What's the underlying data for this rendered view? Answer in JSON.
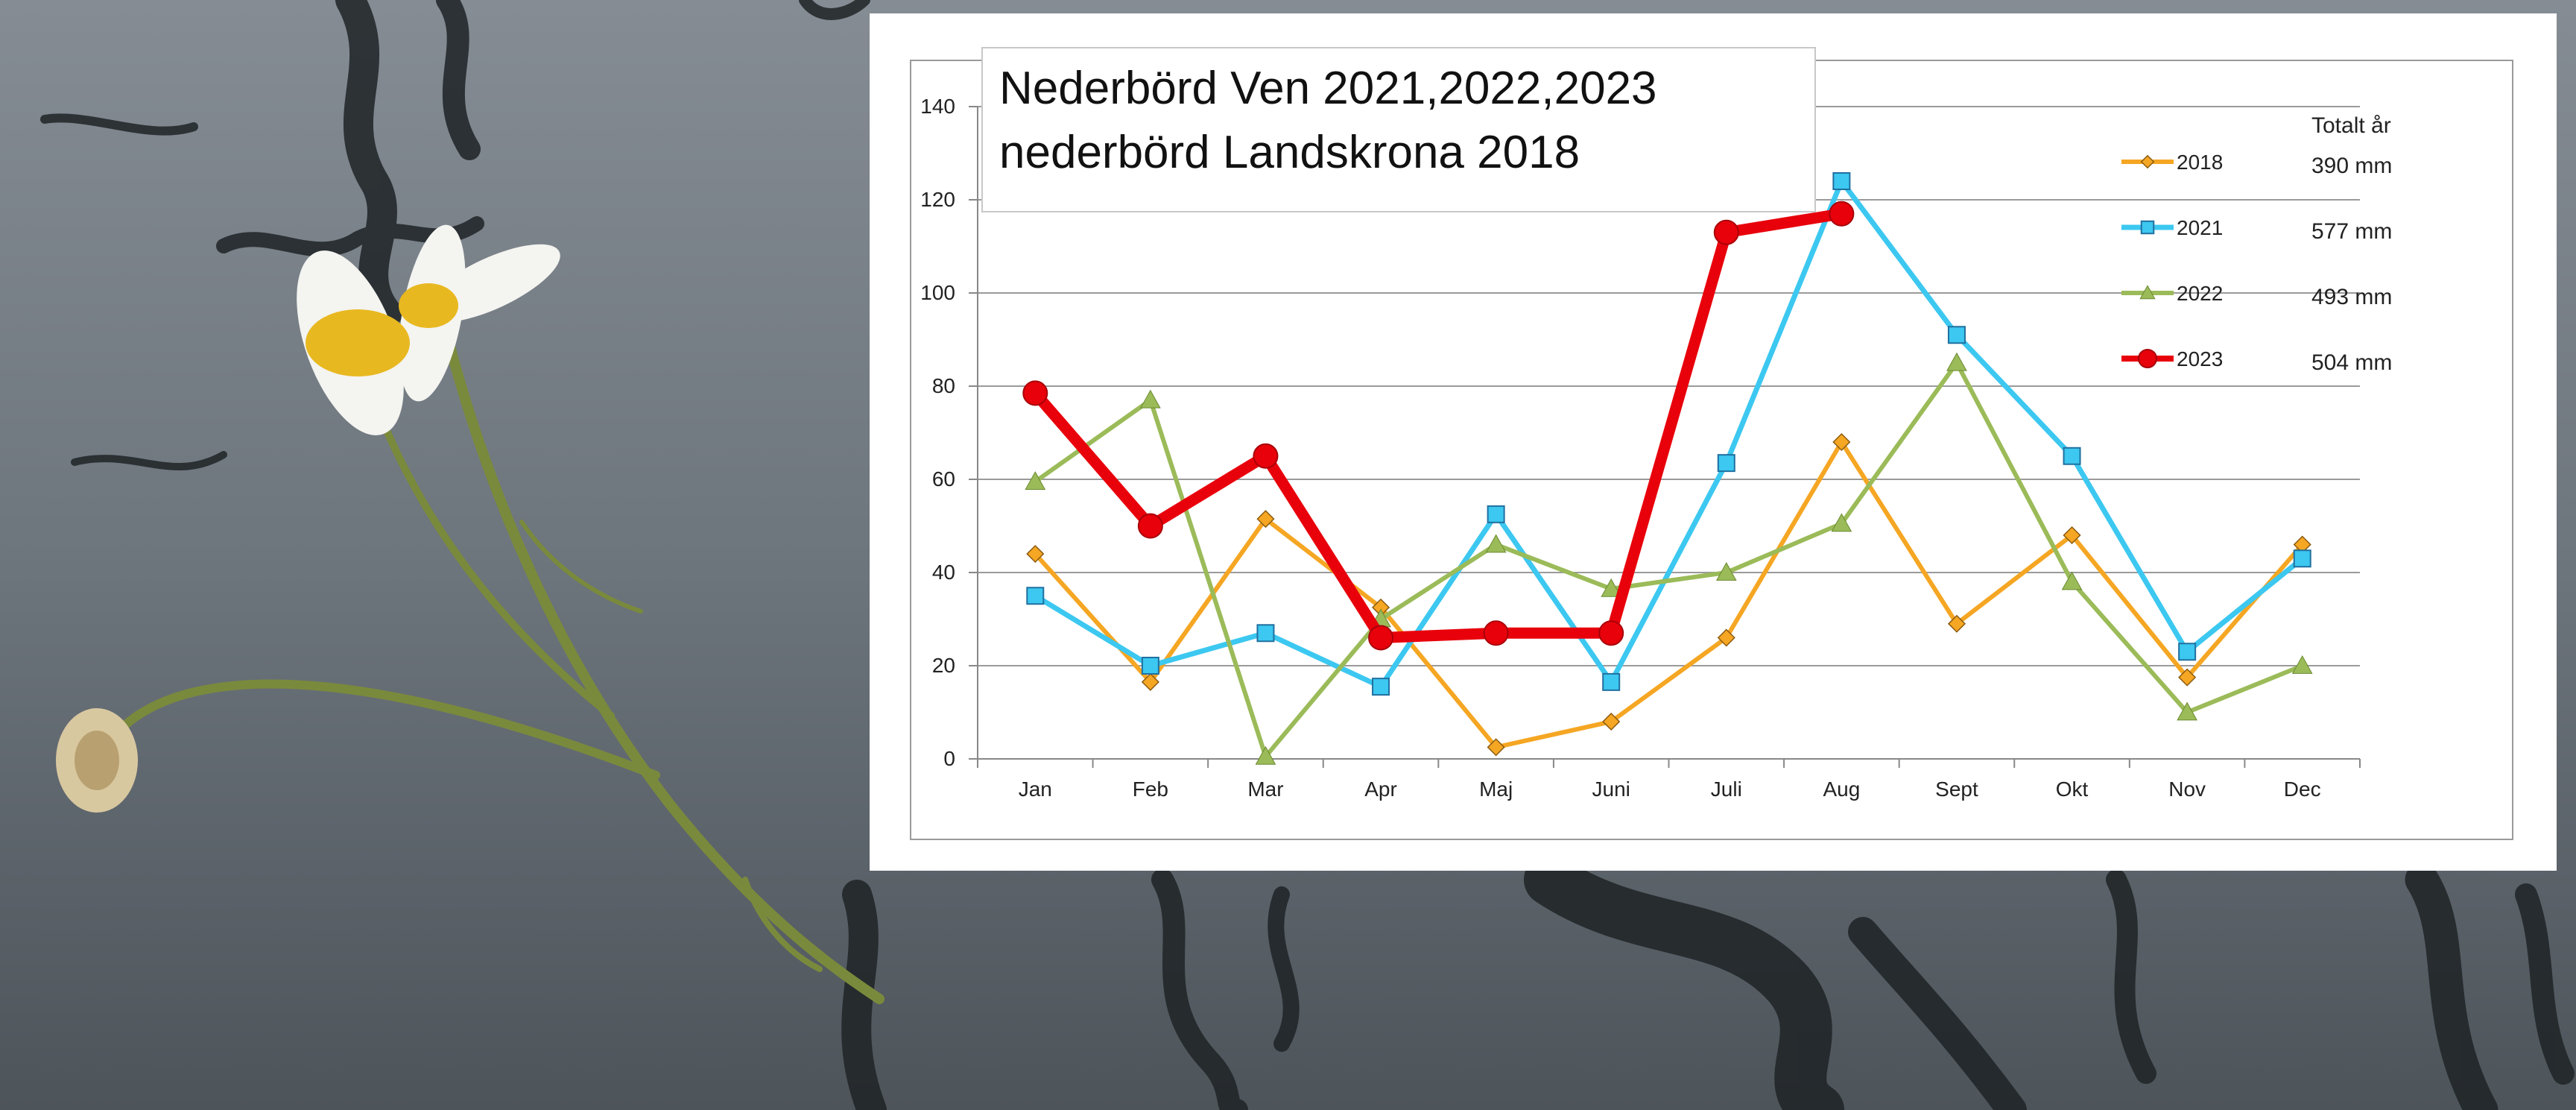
{
  "chart_data": {
    "type": "line",
    "title": "Nederbörd Ven 2021,2022,2023",
    "subtitle": "nederbörd Landskrona 2018",
    "categories": [
      "Jan",
      "Feb",
      "Mar",
      "Apr",
      "Maj",
      "Juni",
      "Juli",
      "Aug",
      "Sept",
      "Okt",
      "Nov",
      "Dec"
    ],
    "ylim": [
      0,
      140
    ],
    "yticks": [
      0,
      20,
      40,
      60,
      80,
      100,
      120,
      140
    ],
    "grid": true,
    "legend_position": "right",
    "totals_header": "Totalt år",
    "series": [
      {
        "name": "2018",
        "color": "#F5A623",
        "marker": "diamond",
        "width": 6,
        "values": [
          44,
          16.5,
          51.5,
          32.5,
          2.5,
          8,
          26,
          68,
          29,
          48,
          17.5,
          46
        ],
        "total": "390 mm"
      },
      {
        "name": "2021",
        "color": "#3CC8F0",
        "marker": "square",
        "width": 7,
        "values": [
          35,
          20,
          27,
          15.5,
          52.5,
          16.5,
          63.5,
          124,
          91,
          65,
          23,
          43
        ],
        "total": "577 mm"
      },
      {
        "name": "2022",
        "color": "#9BBB59",
        "marker": "triangle",
        "width": 6,
        "values": [
          59.5,
          77,
          0.5,
          30,
          46,
          36.5,
          40,
          50.5,
          85,
          38,
          10,
          20
        ],
        "total": "493 mm"
      },
      {
        "name": "2023",
        "color": "#E8000B",
        "marker": "circle",
        "width": 15,
        "values": [
          78.5,
          50,
          65,
          26,
          27,
          27,
          113,
          117,
          null,
          null,
          null,
          null
        ],
        "total": "504 mm"
      }
    ]
  },
  "background": {
    "water": "#6f7880",
    "stem": "#7a8a3c",
    "petal": "#f4f4f0",
    "disc": "#e8b820"
  }
}
